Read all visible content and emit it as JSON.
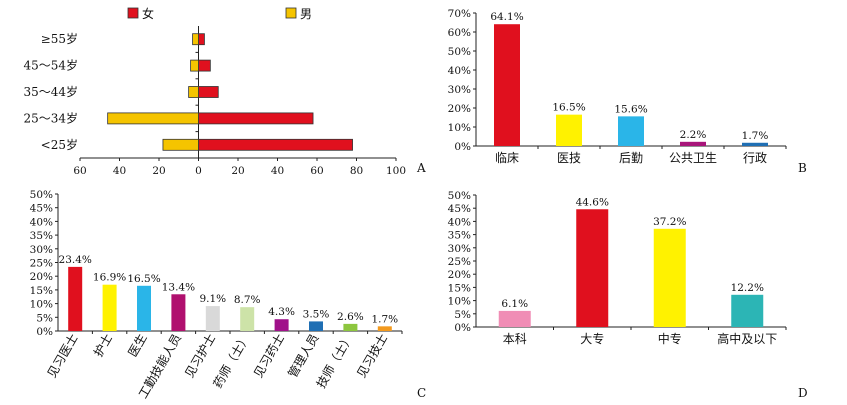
{
  "chart_data": [
    {
      "panel": "A",
      "type": "bar",
      "orientation": "horizontal-pyramid",
      "categories": [
        "<25岁",
        "25～34岁",
        "35～44岁",
        "45～54岁",
        "≥55岁"
      ],
      "series": [
        {
          "name": "女",
          "color": "#e0101e",
          "values": [
            78,
            58,
            10,
            6,
            3
          ]
        },
        {
          "name": "男",
          "color": "#f5c400",
          "values": [
            18,
            46,
            5,
            4,
            3
          ]
        }
      ],
      "x_ticks": [
        "60",
        "40",
        "20",
        "0",
        "20",
        "40",
        "60",
        "80",
        "100"
      ],
      "xlim": [
        -60,
        100
      ],
      "legend": "top"
    },
    {
      "panel": "B",
      "type": "bar",
      "categories": [
        "临床",
        "医技",
        "后勤",
        "公共卫生",
        "行政"
      ],
      "values": [
        64.1,
        16.5,
        15.6,
        2.2,
        1.7
      ],
      "value_labels": [
        "64.1%",
        "16.5%",
        "15.6%",
        "2.2%",
        "1.7%"
      ],
      "colors": [
        "#e0101e",
        "#fff200",
        "#2ab5e8",
        "#a8157a",
        "#1f6fb4"
      ],
      "y_ticks": [
        "0%",
        "10%",
        "20%",
        "30%",
        "40%",
        "50%",
        "60%",
        "70%"
      ],
      "ylim": [
        0,
        70
      ]
    },
    {
      "panel": "C",
      "type": "bar",
      "categories": [
        "见习医士",
        "护士",
        "医生",
        "工勤技能人员",
        "见习护士",
        "药师（士）",
        "见习药士",
        "管理人员",
        "技师（士）",
        "见习技士"
      ],
      "values": [
        23.4,
        16.9,
        16.5,
        13.4,
        9.1,
        8.7,
        4.3,
        3.5,
        2.6,
        1.7
      ],
      "value_labels": [
        "23.4%",
        "16.9%",
        "16.5%",
        "13.4%",
        "9.1%",
        "8.7%",
        "4.3%",
        "3.5%",
        "2.6%",
        "1.7%"
      ],
      "colors": [
        "#e0101e",
        "#fff200",
        "#2ab5e8",
        "#b0106e",
        "#d9d9d9",
        "#cde3a8",
        "#a0118a",
        "#1f6fb4",
        "#8dc63f",
        "#f39a1e"
      ],
      "y_ticks": [
        "0%",
        "5%",
        "10%",
        "15%",
        "20%",
        "25%",
        "30%",
        "35%",
        "40%",
        "45%",
        "50%"
      ],
      "ylim": [
        0,
        50
      ]
    },
    {
      "panel": "D",
      "type": "bar",
      "categories": [
        "本科",
        "大专",
        "中专",
        "高中及以下"
      ],
      "values": [
        6.1,
        44.6,
        37.2,
        12.2
      ],
      "value_labels": [
        "6.1%",
        "44.6%",
        "37.2%",
        "12.2%"
      ],
      "colors": [
        "#f08db5",
        "#e0101e",
        "#fff200",
        "#2cb5b5"
      ],
      "y_ticks": [
        "0%",
        "5%",
        "10%",
        "15%",
        "20%",
        "25%",
        "30%",
        "35%",
        "40%",
        "45%",
        "50%"
      ],
      "ylim": [
        0,
        50
      ]
    }
  ]
}
